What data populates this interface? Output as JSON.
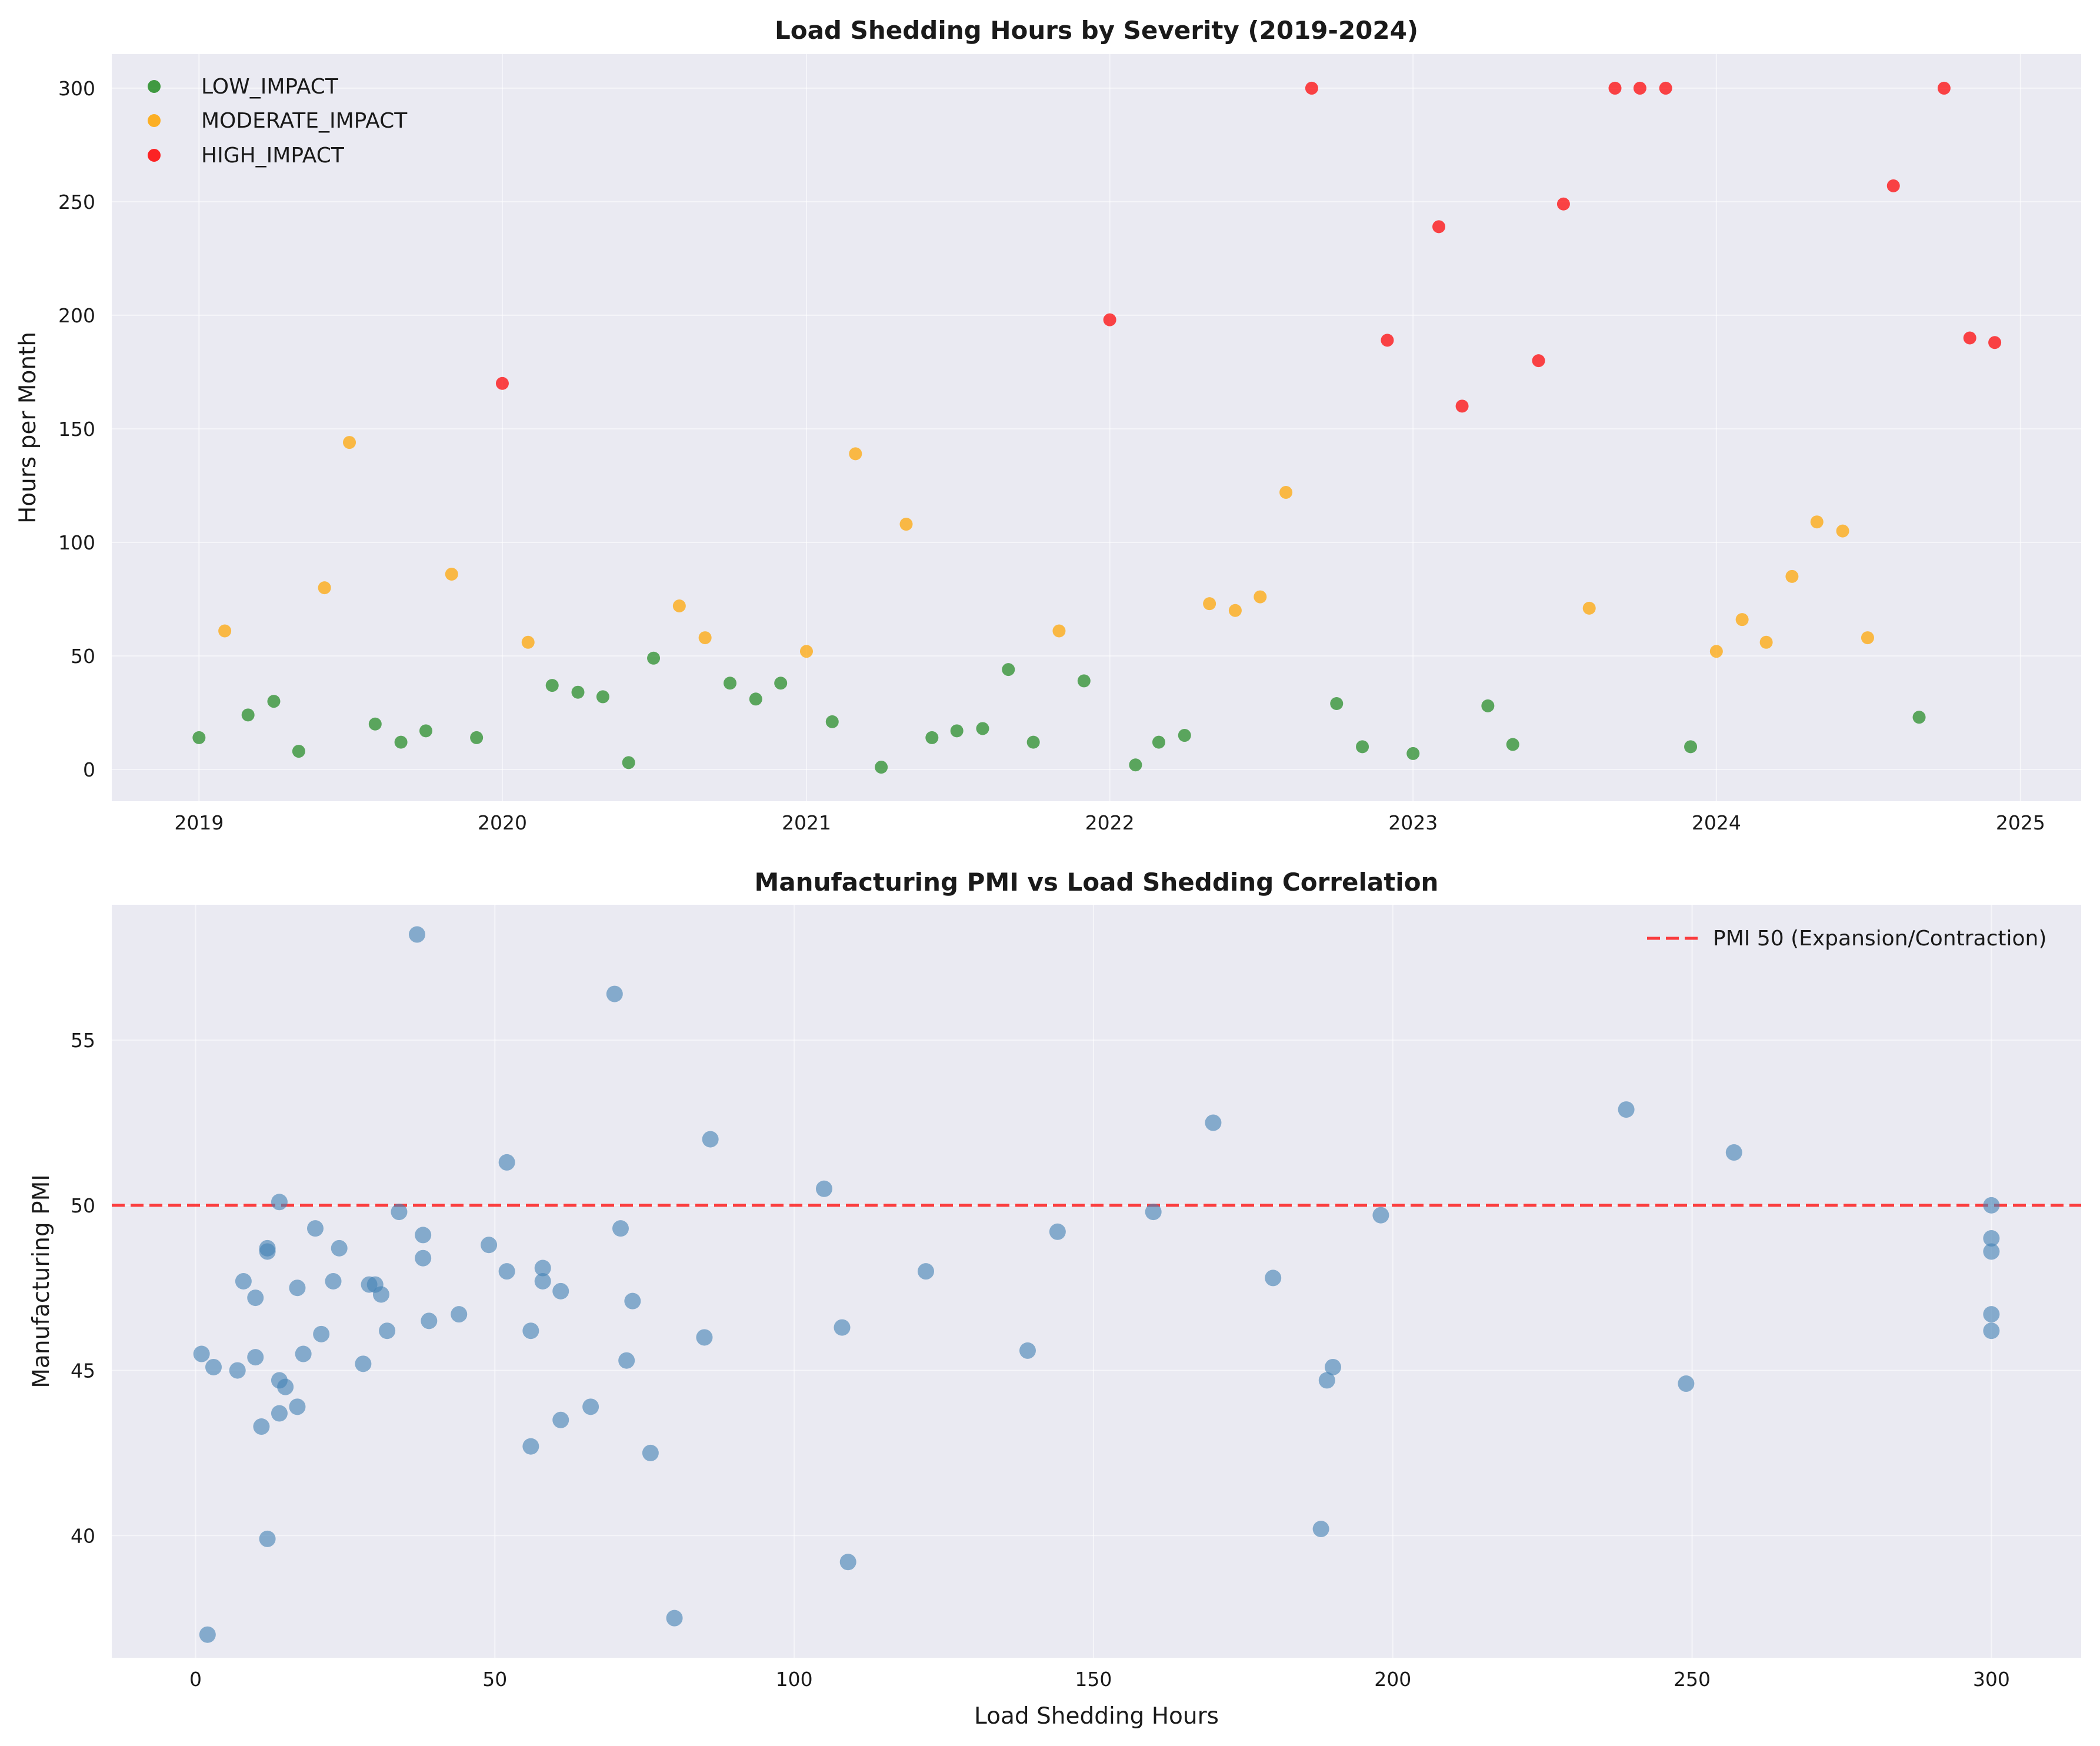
{
  "colors": {
    "low": "#228b22",
    "moderate": "#ffa500",
    "high": "#ff0000",
    "pmi": "#4682b4",
    "threshold": "#ff0000",
    "plot_background": "#eaeaf2"
  },
  "chart_data": [
    {
      "type": "scatter",
      "title": "Load Shedding Hours by Severity (2019-2024)",
      "xlabel": "",
      "ylabel": "Hours per Month",
      "x_axis": "date",
      "xlim": [
        "2018-09-18",
        "2025-03-15"
      ],
      "ylim": [
        -14,
        315
      ],
      "xticks": [
        "2019",
        "2020",
        "2021",
        "2022",
        "2023",
        "2024",
        "2025"
      ],
      "yticks": [
        0,
        50,
        100,
        150,
        200,
        250,
        300
      ],
      "grid": true,
      "legend_position": "top-left",
      "series": [
        {
          "name": "LOW_IMPACT",
          "color": "#228b22",
          "points": [
            [
              "2019-01-01",
              14
            ],
            [
              "2019-03-01",
              24
            ],
            [
              "2019-04-01",
              30
            ],
            [
              "2019-05-01",
              8
            ],
            [
              "2019-08-01",
              20
            ],
            [
              "2019-09-01",
              12
            ],
            [
              "2019-10-01",
              17
            ],
            [
              "2019-12-01",
              14
            ],
            [
              "2020-03-01",
              37
            ],
            [
              "2020-04-01",
              34
            ],
            [
              "2020-05-01",
              32
            ],
            [
              "2020-06-01",
              3
            ],
            [
              "2020-07-01",
              49
            ],
            [
              "2020-10-01",
              38
            ],
            [
              "2020-11-01",
              31
            ],
            [
              "2020-12-01",
              38
            ],
            [
              "2021-02-01",
              21
            ],
            [
              "2021-04-01",
              1
            ],
            [
              "2021-06-01",
              14
            ],
            [
              "2021-07-01",
              17
            ],
            [
              "2021-08-01",
              18
            ],
            [
              "2021-09-01",
              44
            ],
            [
              "2021-10-01",
              12
            ],
            [
              "2021-12-01",
              39
            ],
            [
              "2022-02-01",
              2
            ],
            [
              "2022-03-01",
              12
            ],
            [
              "2022-04-01",
              15
            ],
            [
              "2022-10-01",
              29
            ],
            [
              "2022-11-01",
              10
            ],
            [
              "2023-01-01",
              7
            ],
            [
              "2023-04-01",
              28
            ],
            [
              "2023-05-01",
              11
            ],
            [
              "2023-12-01",
              10
            ],
            [
              "2024-09-01",
              23
            ]
          ]
        },
        {
          "name": "MODERATE_IMPACT",
          "color": "#ffa500",
          "points": [
            [
              "2019-02-01",
              61
            ],
            [
              "2019-06-01",
              80
            ],
            [
              "2019-07-01",
              144
            ],
            [
              "2019-11-01",
              86
            ],
            [
              "2020-02-01",
              56
            ],
            [
              "2020-08-01",
              72
            ],
            [
              "2020-09-01",
              58
            ],
            [
              "2021-01-01",
              52
            ],
            [
              "2021-03-01",
              139
            ],
            [
              "2021-05-01",
              108
            ],
            [
              "2021-11-01",
              61
            ],
            [
              "2022-05-01",
              73
            ],
            [
              "2022-06-01",
              70
            ],
            [
              "2022-07-01",
              76
            ],
            [
              "2022-08-01",
              122
            ],
            [
              "2023-08-01",
              71
            ],
            [
              "2024-01-01",
              52
            ],
            [
              "2024-02-01",
              66
            ],
            [
              "2024-03-01",
              56
            ],
            [
              "2024-04-01",
              85
            ],
            [
              "2024-05-01",
              109
            ],
            [
              "2024-06-01",
              105
            ],
            [
              "2024-07-01",
              58
            ]
          ]
        },
        {
          "name": "HIGH_IMPACT",
          "color": "#ff0000",
          "points": [
            [
              "2020-01-01",
              170
            ],
            [
              "2022-01-01",
              198
            ],
            [
              "2022-09-01",
              300
            ],
            [
              "2022-12-01",
              189
            ],
            [
              "2023-02-01",
              239
            ],
            [
              "2023-03-01",
              160
            ],
            [
              "2023-06-01",
              180
            ],
            [
              "2023-07-01",
              249
            ],
            [
              "2023-09-01",
              300
            ],
            [
              "2023-10-01",
              300
            ],
            [
              "2023-11-01",
              300
            ],
            [
              "2024-08-01",
              257
            ],
            [
              "2024-10-01",
              300
            ],
            [
              "2024-11-01",
              190
            ],
            [
              "2024-12-01",
              188
            ]
          ]
        }
      ]
    },
    {
      "type": "scatter",
      "title": "Manufacturing PMI vs Load Shedding Correlation",
      "xlabel": "Load Shedding Hours",
      "ylabel": "Manufacturing PMI",
      "xlim": [
        -14,
        315
      ],
      "ylim": [
        36.3,
        59.1
      ],
      "xticks": [
        0,
        50,
        100,
        150,
        200,
        250,
        300
      ],
      "yticks": [
        40,
        45,
        50,
        55
      ],
      "grid": true,
      "legend_position": "top-right",
      "threshold": {
        "label": "PMI 50 (Expansion/Contraction)",
        "y": 50,
        "color": "#ff0000",
        "style": "dashed"
      },
      "series": [
        {
          "name": "",
          "color": "#4682b4",
          "points": [
            [
              1,
              45.5
            ],
            [
              2,
              37
            ],
            [
              3,
              45.1
            ],
            [
              7,
              45
            ],
            [
              8,
              47.7
            ],
            [
              10,
              45.4
            ],
            [
              10,
              47.2
            ],
            [
              11,
              43.3
            ],
            [
              12,
              48.7
            ],
            [
              12,
              48.6
            ],
            [
              12,
              39.9
            ],
            [
              14,
              50.1
            ],
            [
              14,
              44.7
            ],
            [
              14,
              43.7
            ],
            [
              15,
              44.5
            ],
            [
              17,
              47.5
            ],
            [
              17,
              43.9
            ],
            [
              18,
              45.5
            ],
            [
              20,
              49.3
            ],
            [
              21,
              46.1
            ],
            [
              23,
              47.7
            ],
            [
              24,
              48.7
            ],
            [
              28,
              45.2
            ],
            [
              29,
              47.6
            ],
            [
              30,
              47.6
            ],
            [
              31,
              47.3
            ],
            [
              32,
              46.2
            ],
            [
              34,
              49.8
            ],
            [
              37,
              58.2
            ],
            [
              38,
              49.1
            ],
            [
              38,
              48.4
            ],
            [
              39,
              46.5
            ],
            [
              44,
              46.7
            ],
            [
              49,
              48.8
            ],
            [
              52,
              51.3
            ],
            [
              52,
              48
            ],
            [
              56,
              42.7
            ],
            [
              56,
              46.2
            ],
            [
              58,
              48.1
            ],
            [
              58,
              47.7
            ],
            [
              61,
              47.4
            ],
            [
              61,
              43.5
            ],
            [
              66,
              43.9
            ],
            [
              70,
              56.4
            ],
            [
              71,
              49.3
            ],
            [
              72,
              45.3
            ],
            [
              73,
              47.1
            ],
            [
              76,
              42.5
            ],
            [
              80,
              37.5
            ],
            [
              85,
              46
            ],
            [
              86,
              52
            ],
            [
              105,
              50.5
            ],
            [
              108,
              46.3
            ],
            [
              109,
              39.2
            ],
            [
              122,
              48
            ],
            [
              139,
              45.6
            ],
            [
              144,
              49.2
            ],
            [
              160,
              49.8
            ],
            [
              170,
              52.5
            ],
            [
              180,
              47.8
            ],
            [
              188,
              40.2
            ],
            [
              189,
              44.7
            ],
            [
              190,
              45.1
            ],
            [
              198,
              49.7
            ],
            [
              239,
              52.9
            ],
            [
              249,
              44.6
            ],
            [
              257,
              51.6
            ],
            [
              300,
              50
            ],
            [
              300,
              49
            ],
            [
              300,
              48.6
            ],
            [
              300,
              46.7
            ],
            [
              300,
              46.2
            ]
          ]
        }
      ]
    }
  ]
}
